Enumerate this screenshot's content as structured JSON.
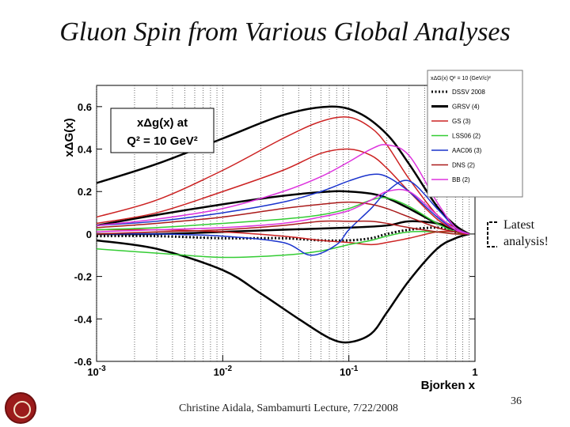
{
  "slide": {
    "title": "Gluon Spin from Various Global Analyses",
    "footer": "Christine Aidala, Sambamurti Lecture, 7/22/2008",
    "page_number": "36",
    "annotation_line1": "Latest",
    "annotation_line2": "analysis!"
  },
  "chart_data": {
    "type": "line",
    "ylabel": "xΔG(x)",
    "xlabel": "Bjorken x",
    "xscale": "log",
    "xlim": [
      0.001,
      1
    ],
    "ylim": [
      -0.6,
      0.7
    ],
    "xticks": [
      "10^-3",
      "10^-2",
      "10^-1",
      "1"
    ],
    "yticks": [
      "0.6",
      "0.4",
      "0.2",
      "0",
      "-0.2",
      "-0.4",
      "-0.6"
    ],
    "inset_label_line1": "xΔg(x) at",
    "inset_label_line2": "Q² = 10 GeV²",
    "legend": {
      "placement": "top-right",
      "header": "xΔG(x)  Q² = 10 (GeV/c)²",
      "entries": [
        {
          "name": "DSSV 2008",
          "color": "#000000",
          "dash": "dotted"
        },
        {
          "name": "GRSV (4)",
          "color": "#000000",
          "dash": "solid"
        },
        {
          "name": "GS (3)",
          "color": "#cc2222",
          "dash": "solid"
        },
        {
          "name": "LSS06 (2)",
          "color": "#33cc33",
          "dash": "solid"
        },
        {
          "name": "AAC06 (3)",
          "color": "#1a33cc",
          "dash": "solid"
        },
        {
          "name": "DNS (2)",
          "color": "#aa1a1a",
          "dash": "solid"
        },
        {
          "name": "BB (2)",
          "color": "#dd33dd",
          "dash": "solid"
        }
      ]
    },
    "series": [
      {
        "name": "DSSV 2008",
        "color": "#000000",
        "width": 3,
        "dash": "dotted",
        "x": [
          0.001,
          0.003,
          0.01,
          0.03,
          0.06,
          0.1,
          0.15,
          0.2,
          0.3,
          0.5,
          0.7,
          0.9
        ],
        "y": [
          -0.01,
          -0.01,
          -0.02,
          -0.02,
          -0.03,
          -0.03,
          -0.02,
          0.0,
          0.02,
          0.03,
          0.01,
          0.0
        ]
      },
      {
        "name": "GRSV (4)",
        "color": "#000000",
        "width": 2.5,
        "dash": "solid",
        "x": [
          0.001,
          0.003,
          0.01,
          0.03,
          0.07,
          0.12,
          0.2,
          0.3,
          0.5,
          0.7,
          0.9
        ],
        "y": [
          0.24,
          0.33,
          0.45,
          0.56,
          0.6,
          0.57,
          0.47,
          0.33,
          0.13,
          0.04,
          0.0
        ]
      },
      {
        "name": "GRSV (4)",
        "color": "#000000",
        "width": 2.5,
        "dash": "solid",
        "x": [
          0.001,
          0.003,
          0.01,
          0.03,
          0.07,
          0.1,
          0.15,
          0.2,
          0.3,
          0.5,
          0.7,
          0.9
        ],
        "y": [
          0.04,
          0.09,
          0.14,
          0.18,
          0.2,
          0.2,
          0.19,
          0.17,
          0.12,
          0.05,
          0.02,
          0.0
        ]
      },
      {
        "name": "GRSV (4)",
        "color": "#000000",
        "width": 2.5,
        "dash": "solid",
        "x": [
          0.001,
          0.003,
          0.01,
          0.03,
          0.1,
          0.2,
          0.3,
          0.5,
          0.7,
          0.9
        ],
        "y": [
          0.0,
          0.0,
          0.01,
          0.02,
          0.03,
          0.04,
          0.06,
          0.05,
          0.02,
          0.0
        ]
      },
      {
        "name": "GRSV (4)",
        "color": "#000000",
        "width": 2.5,
        "dash": "solid",
        "x": [
          0.001,
          0.003,
          0.01,
          0.02,
          0.04,
          0.07,
          0.1,
          0.15,
          0.2,
          0.3,
          0.5,
          0.7,
          0.9
        ],
        "y": [
          -0.03,
          -0.07,
          -0.17,
          -0.28,
          -0.4,
          -0.49,
          -0.51,
          -0.47,
          -0.37,
          -0.22,
          -0.07,
          -0.02,
          0.0
        ]
      },
      {
        "name": "GS (3)",
        "color": "#cc2222",
        "width": 1.5,
        "dash": "solid",
        "x": [
          0.001,
          0.003,
          0.01,
          0.03,
          0.06,
          0.1,
          0.15,
          0.2,
          0.3,
          0.5,
          0.7,
          0.9
        ],
        "y": [
          0.08,
          0.16,
          0.3,
          0.45,
          0.53,
          0.55,
          0.5,
          0.42,
          0.26,
          0.09,
          0.03,
          0.0
        ]
      },
      {
        "name": "GS (3)",
        "color": "#cc2222",
        "width": 1.5,
        "dash": "solid",
        "x": [
          0.001,
          0.003,
          0.01,
          0.03,
          0.06,
          0.1,
          0.15,
          0.2,
          0.3,
          0.5,
          0.7,
          0.9
        ],
        "y": [
          0.05,
          0.1,
          0.2,
          0.3,
          0.38,
          0.4,
          0.37,
          0.31,
          0.2,
          0.07,
          0.02,
          0.0
        ]
      },
      {
        "name": "GS (3)",
        "color": "#cc2222",
        "width": 1.5,
        "dash": "solid",
        "x": [
          0.001,
          0.003,
          0.01,
          0.03,
          0.06,
          0.1,
          0.15,
          0.2,
          0.3,
          0.5,
          0.7,
          0.9
        ],
        "y": [
          0.02,
          0.02,
          0.01,
          -0.01,
          -0.03,
          -0.04,
          -0.05,
          -0.04,
          -0.02,
          0.01,
          0.01,
          0.0
        ]
      },
      {
        "name": "LSS06 (2)",
        "color": "#33cc33",
        "width": 1.5,
        "dash": "solid",
        "x": [
          0.001,
          0.003,
          0.01,
          0.03,
          0.06,
          0.1,
          0.15,
          0.2,
          0.3,
          0.5,
          0.7,
          0.9
        ],
        "y": [
          -0.07,
          -0.09,
          -0.11,
          -0.1,
          -0.08,
          -0.05,
          -0.03,
          -0.01,
          0.01,
          0.01,
          0.0,
          0.0
        ]
      },
      {
        "name": "LSS06 (2)",
        "color": "#33cc33",
        "width": 1.5,
        "dash": "solid",
        "x": [
          0.001,
          0.003,
          0.01,
          0.03,
          0.06,
          0.1,
          0.15,
          0.2,
          0.3,
          0.5,
          0.7,
          0.9
        ],
        "y": [
          0.02,
          0.03,
          0.05,
          0.07,
          0.09,
          0.12,
          0.16,
          0.17,
          0.13,
          0.05,
          0.01,
          0.0
        ]
      },
      {
        "name": "AAC06 (3)",
        "color": "#1a33cc",
        "width": 1.5,
        "dash": "solid",
        "x": [
          0.001,
          0.003,
          0.01,
          0.03,
          0.06,
          0.1,
          0.15,
          0.2,
          0.3,
          0.5,
          0.7,
          0.9
        ],
        "y": [
          0.04,
          0.06,
          0.1,
          0.15,
          0.2,
          0.25,
          0.28,
          0.27,
          0.2,
          0.08,
          0.02,
          0.0
        ]
      },
      {
        "name": "AAC06 (3)",
        "color": "#1a33cc",
        "width": 1.5,
        "dash": "solid",
        "x": [
          0.001,
          0.003,
          0.01,
          0.03,
          0.05,
          0.08,
          0.1,
          0.15,
          0.2,
          0.3,
          0.5,
          0.7,
          0.9
        ],
        "y": [
          0.0,
          0.0,
          -0.01,
          -0.04,
          -0.1,
          -0.05,
          0.02,
          0.12,
          0.2,
          0.25,
          0.12,
          0.03,
          0.0
        ]
      },
      {
        "name": "DNS (2)",
        "color": "#aa1a1a",
        "width": 1.5,
        "dash": "solid",
        "x": [
          0.001,
          0.003,
          0.01,
          0.03,
          0.06,
          0.1,
          0.15,
          0.2,
          0.3,
          0.5,
          0.7,
          0.9
        ],
        "y": [
          0.03,
          0.05,
          0.08,
          0.12,
          0.14,
          0.15,
          0.14,
          0.12,
          0.08,
          0.03,
          0.01,
          0.0
        ]
      },
      {
        "name": "DNS (2)",
        "color": "#aa1a1a",
        "width": 1.5,
        "dash": "solid",
        "x": [
          0.001,
          0.003,
          0.01,
          0.03,
          0.06,
          0.1,
          0.15,
          0.2,
          0.3,
          0.5,
          0.7,
          0.9
        ],
        "y": [
          0.0,
          0.01,
          0.02,
          0.04,
          0.06,
          0.06,
          0.06,
          0.05,
          0.03,
          0.01,
          0.0,
          0.0
        ]
      },
      {
        "name": "BB (2)",
        "color": "#dd33dd",
        "width": 1.5,
        "dash": "solid",
        "x": [
          0.001,
          0.003,
          0.01,
          0.03,
          0.06,
          0.1,
          0.15,
          0.2,
          0.3,
          0.5,
          0.7,
          0.9
        ],
        "y": [
          0.04,
          0.07,
          0.12,
          0.2,
          0.27,
          0.34,
          0.4,
          0.42,
          0.37,
          0.15,
          0.03,
          0.0
        ]
      },
      {
        "name": "BB (2)",
        "color": "#dd33dd",
        "width": 1.5,
        "dash": "solid",
        "x": [
          0.001,
          0.003,
          0.01,
          0.03,
          0.06,
          0.1,
          0.15,
          0.2,
          0.3,
          0.5,
          0.7,
          0.9
        ],
        "y": [
          0.01,
          0.02,
          0.03,
          0.05,
          0.08,
          0.11,
          0.16,
          0.2,
          0.2,
          0.09,
          0.02,
          0.0
        ]
      }
    ]
  }
}
